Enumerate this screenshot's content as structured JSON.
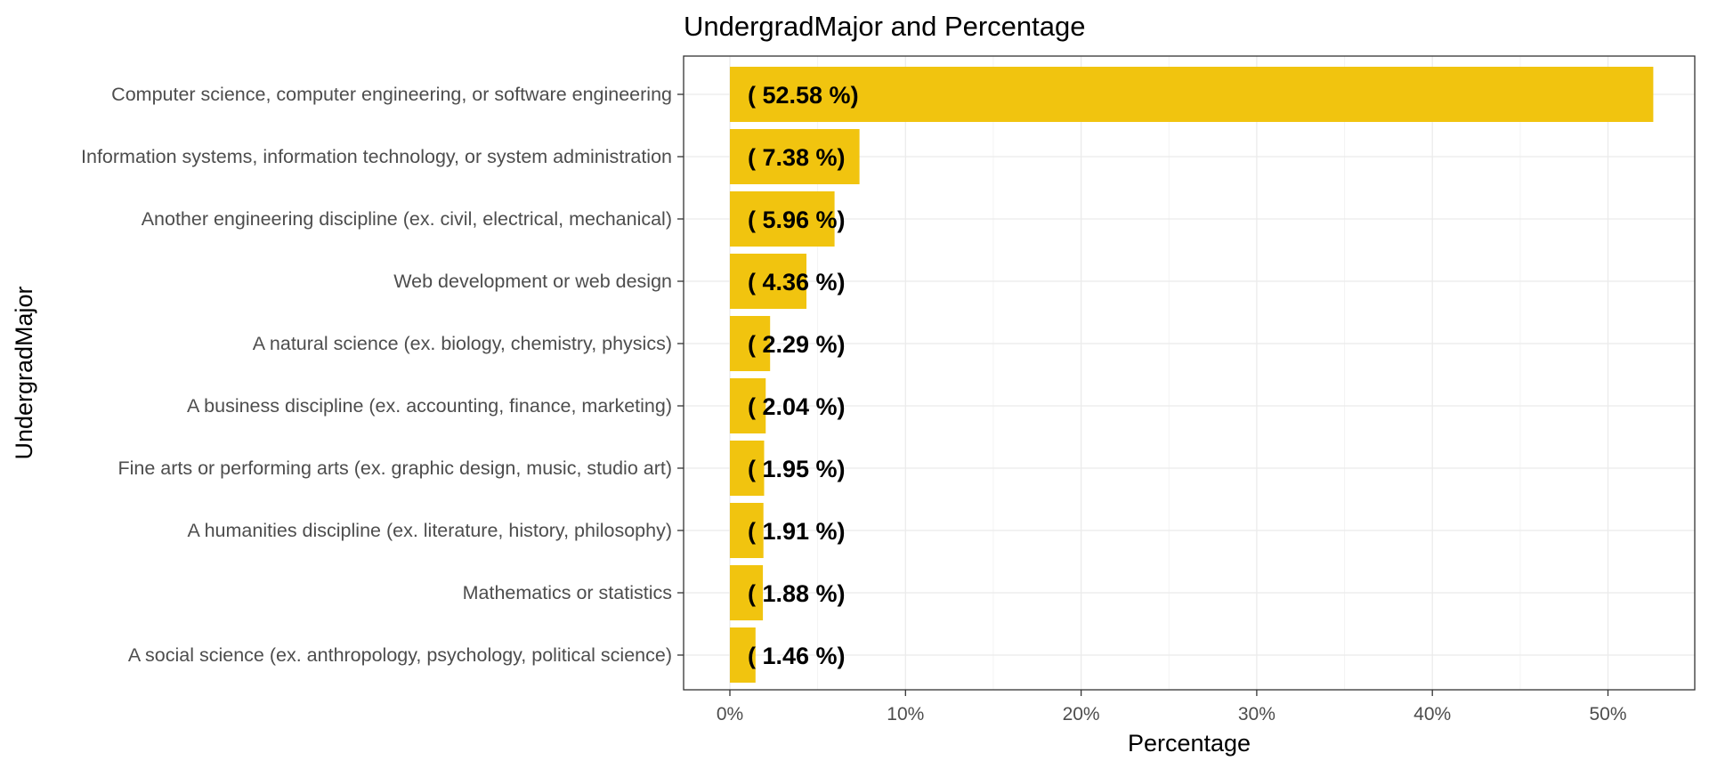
{
  "colors": {
    "bar": "#F1C40F",
    "background": "#ffffff"
  },
  "chart_data": {
    "type": "bar",
    "orientation": "horizontal",
    "title": "UndergradMajor and Percentage",
    "xlabel": "Percentage",
    "ylabel": "UndergradMajor",
    "xlim": [
      0,
      55
    ],
    "x_ticks": [
      0,
      10,
      20,
      30,
      40,
      50
    ],
    "x_tick_labels": [
      "0%",
      "10%",
      "20%",
      "30%",
      "40%",
      "50%"
    ],
    "grid": true,
    "legend": "none",
    "categories": [
      "Computer science, computer engineering, or software engineering",
      "Information systems, information technology, or system administration",
      "Another engineering discipline (ex. civil, electrical, mechanical)",
      "Web development or web design",
      "A natural science (ex. biology, chemistry, physics)",
      "A business discipline (ex. accounting, finance, marketing)",
      "Fine arts or performing arts (ex. graphic design, music, studio art)",
      "A humanities discipline (ex. literature, history, philosophy)",
      "Mathematics or statistics",
      "A social science (ex. anthropology, psychology, political science)"
    ],
    "values": [
      52.58,
      7.38,
      5.96,
      4.36,
      2.29,
      2.04,
      1.95,
      1.91,
      1.88,
      1.46
    ],
    "data_labels": [
      "( 52.58 %)",
      "( 7.38 %)",
      "( 5.96 %)",
      "( 4.36 %)",
      "( 2.29 %)",
      "( 2.04 %)",
      "( 1.95 %)",
      "( 1.91 %)",
      "( 1.88 %)",
      "( 1.46 %)"
    ]
  }
}
